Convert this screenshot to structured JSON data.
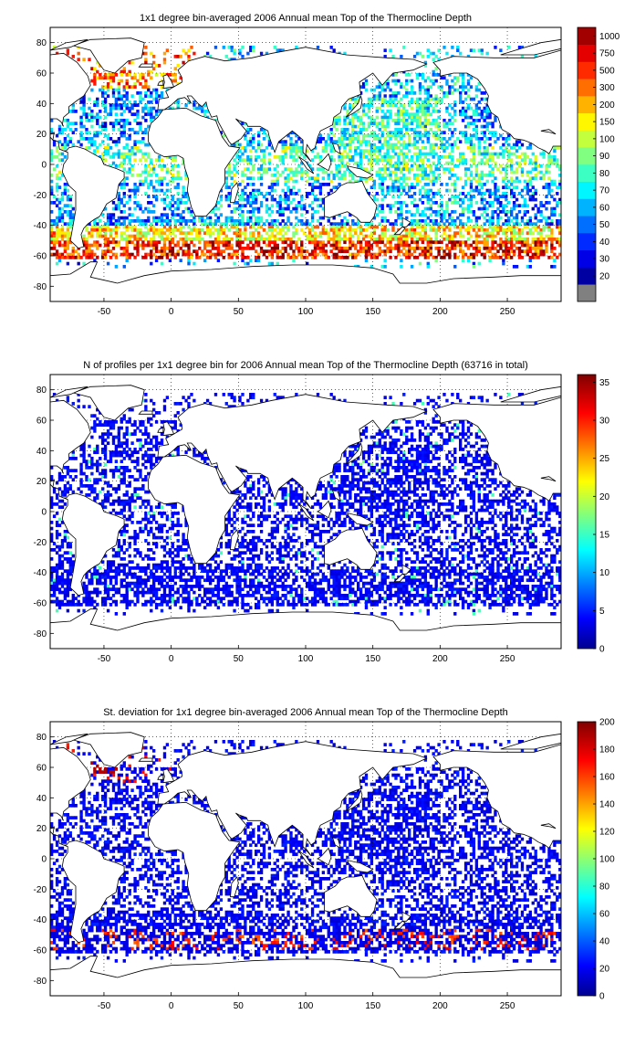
{
  "panels": [
    {
      "title": "1x1 degree bin-averaged 2006 Annual mean Top of the Thermocline Depth",
      "colorbar_ticks": [
        "20",
        "30",
        "40",
        "50",
        "60",
        "70",
        "80",
        "90",
        "100",
        "150",
        "200",
        "300",
        "500",
        "750",
        "1000"
      ],
      "colorbar_style": "discrete",
      "colorbar_bottom_color": "#808080",
      "field": "depth"
    },
    {
      "title": "N of profiles per 1x1 degree bin for 2006 Annual mean Top of the Thermocline Depth  (63716 in total)",
      "colorbar_ticks": [
        "0",
        "5",
        "10",
        "15",
        "20",
        "25",
        "30",
        "35"
      ],
      "colorbar_range": [
        0,
        36
      ],
      "colorbar_style": "continuous",
      "field": "count"
    },
    {
      "title": "St. deviation for 1x1 degree bin-averaged 2006 Annual mean Top of the Thermocline Depth",
      "colorbar_ticks": [
        "0",
        "20",
        "40",
        "60",
        "80",
        "100",
        "120",
        "140",
        "160",
        "180",
        "200"
      ],
      "colorbar_range": [
        0,
        200
      ],
      "colorbar_style": "continuous",
      "field": "std"
    }
  ],
  "axes": {
    "x_ticks": [
      "-50",
      "0",
      "50",
      "100",
      "150",
      "200",
      "250"
    ],
    "y_ticks": [
      "80",
      "60",
      "40",
      "20",
      "0",
      "-20",
      "-40",
      "-60",
      "-80"
    ],
    "xlim": [
      -90,
      290
    ],
    "ylim": [
      -90,
      90
    ],
    "grid": "dotted"
  },
  "colormap": "jet"
}
